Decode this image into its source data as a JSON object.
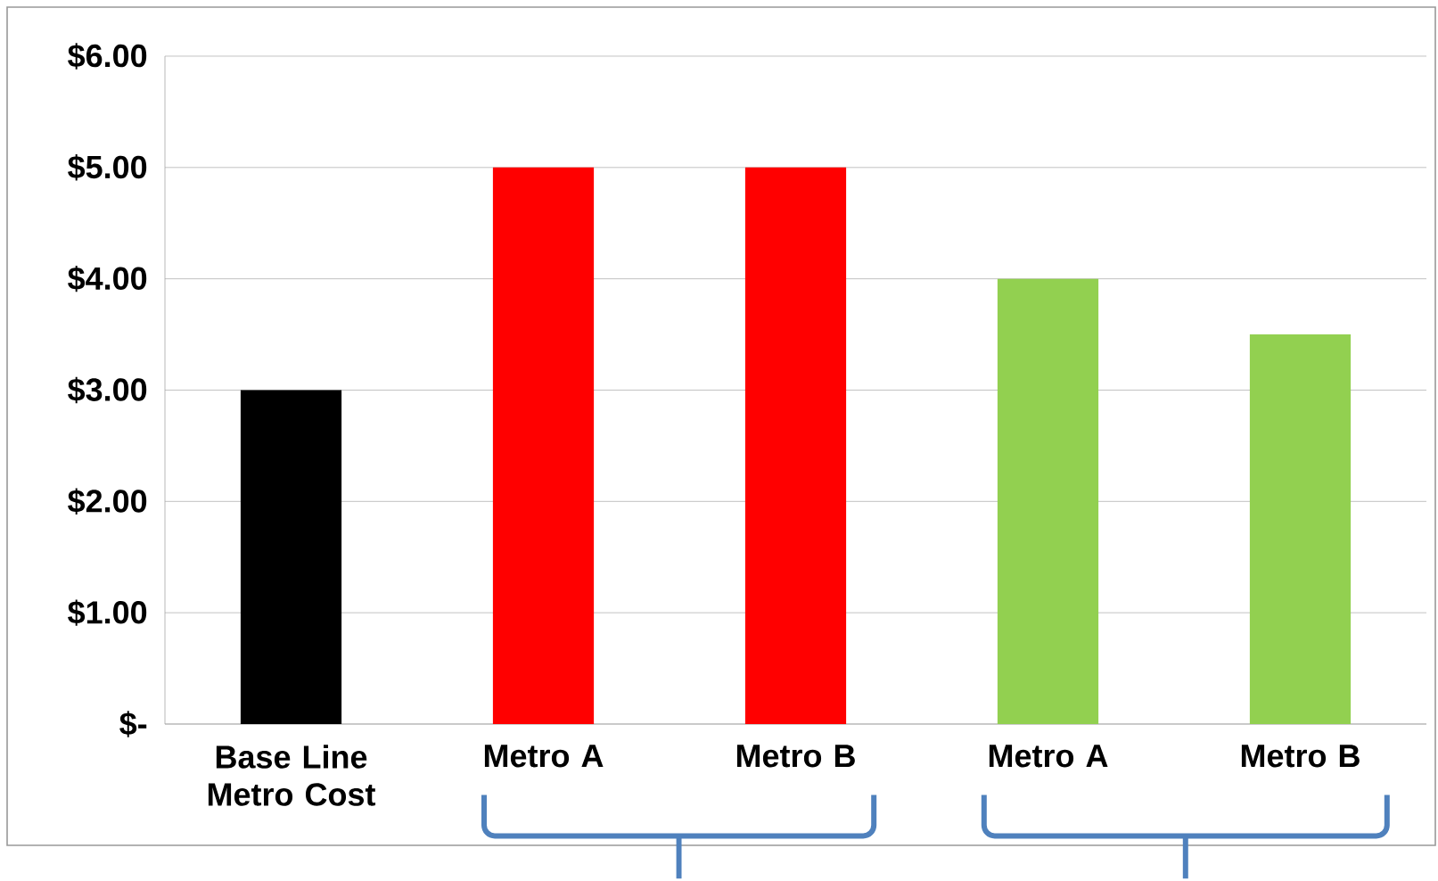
{
  "chart_data": {
    "type": "bar",
    "categories": [
      "Base Line Metro Cost",
      "Metro A",
      "Metro B",
      "Metro A",
      "Metro B"
    ],
    "values": [
      3,
      5,
      5,
      4,
      3.5
    ],
    "colors": [
      "#000000",
      "#ff0000",
      "#ff0000",
      "#92d050",
      "#92d050"
    ],
    "ylim": [
      0,
      6
    ],
    "yticks": [
      {
        "value": 0,
        "label": "$-"
      },
      {
        "value": 1,
        "label": "$1.00"
      },
      {
        "value": 2,
        "label": "$2.00"
      },
      {
        "value": 3,
        "label": "$3.00"
      },
      {
        "value": 4,
        "label": "$4.00"
      },
      {
        "value": 5,
        "label": "$5.00"
      },
      {
        "value": 6,
        "label": "$6.00"
      }
    ],
    "grid": "y"
  }
}
